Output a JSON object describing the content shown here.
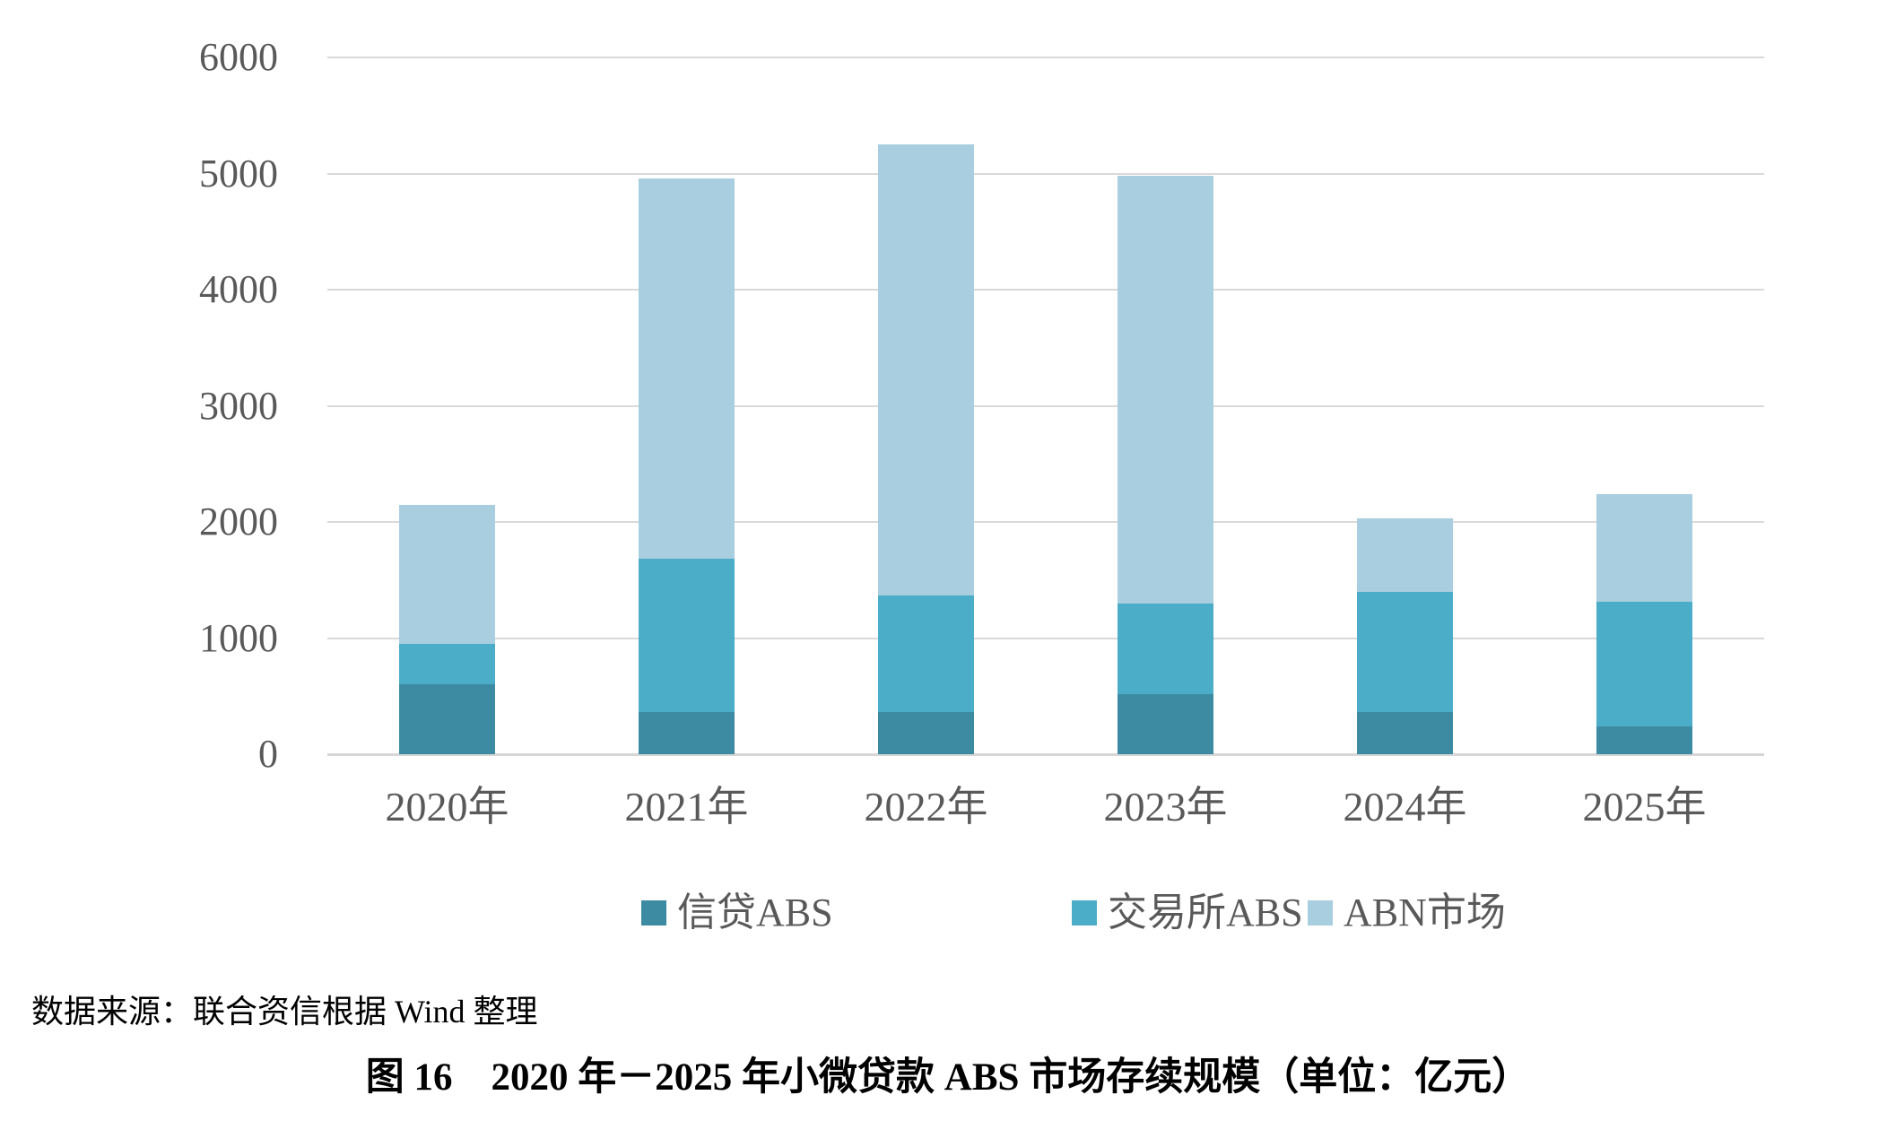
{
  "chart_data": {
    "type": "bar",
    "stacked": true,
    "categories": [
      "2020年",
      "2021年",
      "2022年",
      "2023年",
      "2024年",
      "2025年"
    ],
    "series": [
      {
        "name": "信贷ABS",
        "color": "#3d8ba3",
        "values": [
          600,
          360,
          360,
          520,
          360,
          240
        ]
      },
      {
        "name": "交易所ABS",
        "color": "#4badc7",
        "values": [
          350,
          1320,
          1010,
          780,
          1040,
          1070
        ]
      },
      {
        "name": "ABN市场",
        "color": "#a9cedf",
        "values": [
          1200,
          3280,
          3880,
          3680,
          630,
          930
        ]
      }
    ],
    "totals": [
      2150,
      4960,
      5250,
      4980,
      2030,
      2240
    ],
    "title": "图 16　2020 年－2025 年小微贷款 ABS 市场存续规模（单位：亿元）",
    "xlabel": "",
    "ylabel": "",
    "ylim": [
      0,
      6000
    ],
    "yticks": [
      0,
      1000,
      2000,
      3000,
      4000,
      5000,
      6000
    ],
    "grid": "horizontal",
    "legend_position": "bottom",
    "gridline_color": "#d9d9d9",
    "axis_text_color": "#595959",
    "unit": "亿元"
  },
  "figure": {
    "source_note": "数据来源：联合资信根据 Wind 整理",
    "caption": "图 16　2020 年－2025 年小微贷款 ABS 市场存续规模（单位：亿元）"
  }
}
